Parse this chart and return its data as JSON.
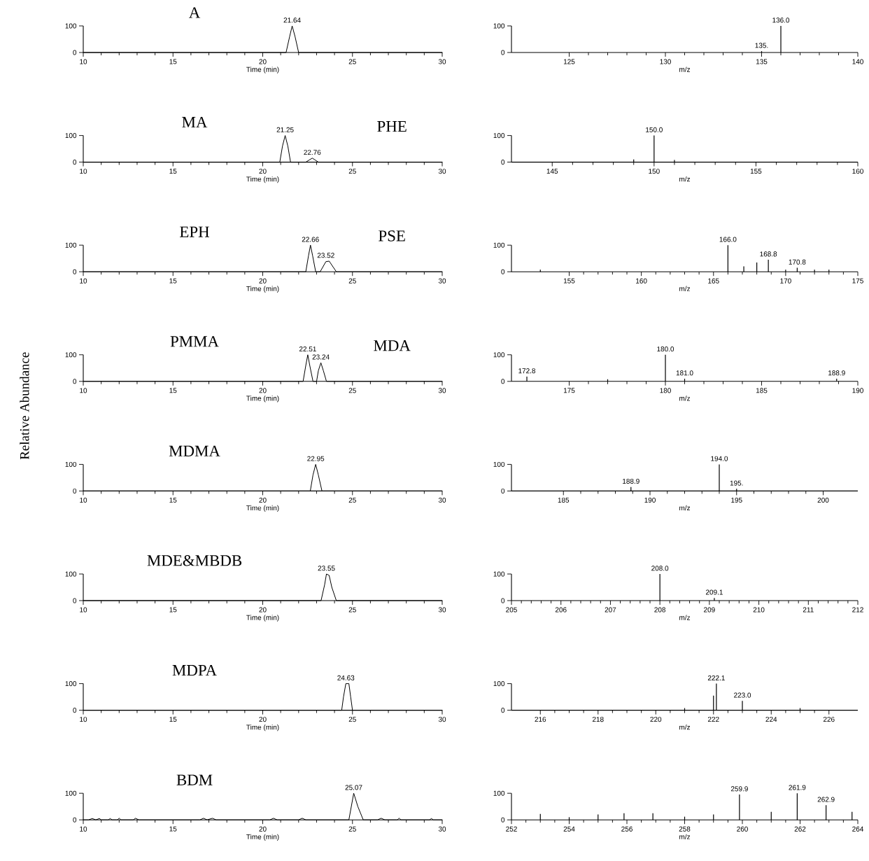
{
  "chart_data": [
    {
      "type": "line",
      "title": "A",
      "xlabel": "Time (min)",
      "x": [
        10,
        21.3,
        21.5,
        21.64,
        21.8,
        22.0,
        30
      ],
      "values": [
        0,
        0,
        60,
        100,
        60,
        0,
        0
      ],
      "color": "#000000",
      "xlim": [
        10,
        30
      ],
      "xticks": [
        10,
        15,
        20,
        25,
        30
      ],
      "ylim": [
        0,
        100
      ],
      "yticks": [
        0,
        100
      ],
      "annotations": [
        {
          "text": "21.64",
          "x": 21.64,
          "y": 100
        }
      ]
    },
    {
      "type": "bar",
      "xlabel": "m/z",
      "x": [
        135.0,
        136.0
      ],
      "values": [
        5,
        100
      ],
      "color": "#000000",
      "xlim": [
        122,
        140
      ],
      "xticks": [
        125,
        130,
        135,
        140
      ],
      "ylim": [
        0,
        100
      ],
      "yticks": [
        0,
        100
      ],
      "annotations": [
        {
          "text": "135.",
          "x": 135.0,
          "y": 5
        },
        {
          "text": "136.0",
          "x": 136.0,
          "y": 100
        }
      ]
    },
    {
      "type": "line",
      "title": "MA",
      "xlabel": "Time (min)",
      "x": [
        10,
        20.95,
        21.1,
        21.25,
        21.4,
        21.55,
        22.4,
        22.76,
        23.1,
        30
      ],
      "values": [
        0,
        0,
        60,
        100,
        60,
        0,
        0,
        15,
        0,
        0
      ],
      "color": "#000000",
      "xlim": [
        10,
        30
      ],
      "xticks": [
        10,
        15,
        20,
        25,
        30
      ],
      "ylim": [
        0,
        100
      ],
      "yticks": [
        0,
        100
      ],
      "annotations": [
        "PHE",
        {
          "text": "21.25",
          "x": 21.25,
          "y": 100
        },
        {
          "text": "22.76",
          "x": 22.76,
          "y": 15
        }
      ]
    },
    {
      "type": "bar",
      "xlabel": "m/z",
      "x": [
        149.0,
        150.0,
        151.0
      ],
      "values": [
        10,
        100,
        8
      ],
      "color": "#000000",
      "xlim": [
        143,
        160
      ],
      "xticks": [
        145,
        150,
        155,
        160
      ],
      "ylim": [
        0,
        100
      ],
      "yticks": [
        0,
        100
      ],
      "annotations": [
        {
          "text": "150.0",
          "x": 150.0,
          "y": 100
        }
      ]
    },
    {
      "type": "line",
      "title": "EPH",
      "xlabel": "Time (min)",
      "x": [
        10,
        22.4,
        22.55,
        22.66,
        22.78,
        22.95,
        23.2,
        23.52,
        23.7,
        24.1,
        30
      ],
      "values": [
        0,
        0,
        60,
        100,
        60,
        0,
        0,
        38,
        40,
        0,
        0
      ],
      "color": "#000000",
      "xlim": [
        10,
        30
      ],
      "xticks": [
        10,
        15,
        20,
        25,
        30
      ],
      "ylim": [
        0,
        100
      ],
      "yticks": [
        0,
        100
      ],
      "annotations": [
        "PSE",
        {
          "text": "22.66",
          "x": 22.66,
          "y": 100
        },
        {
          "text": "23.52",
          "x": 23.52,
          "y": 40
        }
      ]
    },
    {
      "type": "bar",
      "xlabel": "m/z",
      "x": [
        153.0,
        166.0,
        167.1,
        168.0,
        168.8,
        170.0,
        170.8,
        172.0,
        173.0
      ],
      "values": [
        8,
        100,
        20,
        35,
        45,
        8,
        15,
        8,
        8
      ],
      "color": "#000000",
      "xlim": [
        151,
        175
      ],
      "xticks": [
        155,
        160,
        165,
        170,
        175
      ],
      "ylim": [
        0,
        100
      ],
      "yticks": [
        0,
        100
      ],
      "annotations": [
        {
          "text": "166.0",
          "x": 166.0,
          "y": 100
        },
        {
          "text": "168.8",
          "x": 168.8,
          "y": 45
        },
        {
          "text": "170.8",
          "x": 170.8,
          "y": 15
        }
      ]
    },
    {
      "type": "line",
      "title": "PMMA",
      "xlabel": "Time (min)",
      "ylabel": "Relative Abundance",
      "x": [
        10,
        22.25,
        22.4,
        22.51,
        22.62,
        22.8,
        23.0,
        23.1,
        23.24,
        23.38,
        23.55,
        30
      ],
      "values": [
        0,
        0,
        60,
        100,
        60,
        0,
        0,
        40,
        70,
        40,
        0,
        0
      ],
      "color": "#000000",
      "xlim": [
        10,
        30
      ],
      "xticks": [
        10,
        15,
        20,
        25,
        30
      ],
      "ylim": [
        0,
        100
      ],
      "yticks": [
        0,
        100
      ],
      "annotations": [
        "MDA",
        {
          "text": "22.51",
          "x": 22.51,
          "y": 100
        },
        {
          "text": "23.24",
          "x": 23.24,
          "y": 70
        }
      ]
    },
    {
      "type": "bar",
      "xlabel": "m/z",
      "x": [
        172.8,
        177.0,
        180.0,
        181.0,
        188.9
      ],
      "values": [
        18,
        8,
        100,
        10,
        10
      ],
      "color": "#000000",
      "xlim": [
        172,
        190
      ],
      "xticks": [
        175,
        180,
        185,
        190
      ],
      "ylim": [
        0,
        100
      ],
      "yticks": [
        0,
        100
      ],
      "annotations": [
        {
          "text": "172.8",
          "x": 172.8,
          "y": 18
        },
        {
          "text": "180.0",
          "x": 180.0,
          "y": 100
        },
        {
          "text": "181.0",
          "x": 181.0,
          "y": 10
        },
        {
          "text": "188.9",
          "x": 188.9,
          "y": 10
        }
      ]
    },
    {
      "type": "line",
      "title": "MDMA",
      "xlabel": "Time (min)",
      "x": [
        10,
        22.65,
        22.8,
        22.95,
        23.1,
        23.3,
        30
      ],
      "values": [
        0,
        0,
        60,
        100,
        60,
        0,
        0
      ],
      "color": "#000000",
      "xlim": [
        10,
        30
      ],
      "xticks": [
        10,
        15,
        20,
        25,
        30
      ],
      "ylim": [
        0,
        100
      ],
      "yticks": [
        0,
        100
      ],
      "annotations": [
        {
          "text": "22.95",
          "x": 22.95,
          "y": 100
        }
      ]
    },
    {
      "type": "bar",
      "xlabel": "m/z",
      "x": [
        188.9,
        194.0,
        195.0
      ],
      "values": [
        15,
        100,
        8
      ],
      "color": "#000000",
      "xlim": [
        182,
        202
      ],
      "xticks": [
        185,
        190,
        195,
        200
      ],
      "ylim": [
        0,
        100
      ],
      "yticks": [
        0,
        100
      ],
      "annotations": [
        {
          "text": "188.9",
          "x": 188.9,
          "y": 15
        },
        {
          "text": "194.0",
          "x": 194.0,
          "y": 100
        },
        {
          "text": "195.",
          "x": 195.0,
          "y": 8
        }
      ]
    },
    {
      "type": "line",
      "title": "MDE&MBDB",
      "xlabel": "Time (min)",
      "x": [
        10,
        23.25,
        23.45,
        23.55,
        23.7,
        23.85,
        24.1,
        30
      ],
      "values": [
        0,
        0,
        60,
        100,
        95,
        50,
        0,
        0
      ],
      "color": "#000000",
      "xlim": [
        10,
        30
      ],
      "xticks": [
        10,
        15,
        20,
        25,
        30
      ],
      "ylim": [
        0,
        100
      ],
      "yticks": [
        0,
        100
      ],
      "annotations": [
        {
          "text": "23.55",
          "x": 23.55,
          "y": 100
        }
      ]
    },
    {
      "type": "bar",
      "xlabel": "m/z",
      "x": [
        208.0,
        209.1
      ],
      "values": [
        100,
        10
      ],
      "color": "#000000",
      "xlim": [
        205,
        212
      ],
      "xticks": [
        205,
        206,
        207,
        208,
        209,
        210,
        211,
        212
      ],
      "ylim": [
        0,
        100
      ],
      "yticks": [
        0,
        100
      ],
      "annotations": [
        {
          "text": "208.0",
          "x": 208.0,
          "y": 100
        },
        {
          "text": "209.1",
          "x": 209.1,
          "y": 10
        }
      ]
    },
    {
      "type": "line",
      "title": "MDPA",
      "xlabel": "Time (min)",
      "x": [
        10,
        24.4,
        24.5,
        24.63,
        24.8,
        24.9,
        25.0,
        30
      ],
      "values": [
        0,
        0,
        50,
        100,
        100,
        50,
        0,
        0
      ],
      "color": "#000000",
      "xlim": [
        10,
        30
      ],
      "xticks": [
        10,
        15,
        20,
        25,
        30
      ],
      "ylim": [
        0,
        100
      ],
      "yticks": [
        0,
        100
      ],
      "annotations": [
        {
          "text": "24.63",
          "x": 24.63,
          "y": 100
        }
      ]
    },
    {
      "type": "bar",
      "xlabel": "m/z",
      "x": [
        221.0,
        222.0,
        222.1,
        223.0,
        225.0
      ],
      "values": [
        8,
        55,
        100,
        35,
        8
      ],
      "color": "#000000",
      "xlim": [
        215,
        227
      ],
      "xticks": [
        216,
        218,
        220,
        222,
        224,
        226
      ],
      "ylim": [
        0,
        100
      ],
      "yticks": [
        0,
        100
      ],
      "annotations": [
        {
          "text": "222.1",
          "x": 222.1,
          "y": 100
        },
        {
          "text": "223.0",
          "x": 223.0,
          "y": 35
        }
      ]
    },
    {
      "type": "line",
      "title": "BDM",
      "xlabel": "Time (min)",
      "x": [
        10,
        10.3,
        10.5,
        10.7,
        10.9,
        11.0,
        11.1,
        11.4,
        11.5,
        11.6,
        11.9,
        12.0,
        12.1,
        12.8,
        12.9,
        13.1,
        16.5,
        16.7,
        16.9,
        17.2,
        17.4,
        20.4,
        20.6,
        20.8,
        22.0,
        22.2,
        22.4,
        22.6,
        24.8,
        25.07,
        25.3,
        25.6,
        26.4,
        26.6,
        26.8,
        27.5,
        27.6,
        27.7,
        29.3,
        29.4,
        29.5,
        30
      ],
      "values": [
        0,
        0,
        5,
        0,
        5,
        0,
        0,
        0,
        5,
        0,
        0,
        6,
        0,
        0,
        6,
        0,
        0,
        6,
        0,
        6,
        0,
        0,
        6,
        0,
        0,
        6,
        0,
        0,
        0,
        100,
        50,
        0,
        0,
        6,
        0,
        0,
        6,
        0,
        0,
        5,
        0,
        0
      ],
      "color": "#000000",
      "xlim": [
        10,
        30
      ],
      "xticks": [
        10,
        15,
        20,
        25,
        30
      ],
      "ylim": [
        0,
        100
      ],
      "yticks": [
        0,
        100
      ],
      "annotations": [
        {
          "text": "25.07",
          "x": 25.07,
          "y": 100
        }
      ]
    },
    {
      "type": "bar",
      "xlabel": "m/z",
      "x": [
        253.0,
        254.0,
        255.0,
        255.9,
        256.9,
        258.0,
        259.0,
        259.9,
        261.0,
        261.9,
        262.9,
        263.8
      ],
      "values": [
        22,
        10,
        20,
        25,
        25,
        12,
        20,
        95,
        30,
        100,
        55,
        30
      ],
      "color": "#000000",
      "xlim": [
        252,
        264
      ],
      "xticks": [
        252,
        254,
        256,
        258,
        260,
        262,
        264
      ],
      "ylim": [
        0,
        100
      ],
      "yticks": [
        0,
        100
      ],
      "annotations": [
        {
          "text": "259.9",
          "x": 259.9,
          "y": 95
        },
        {
          "text": "261.9",
          "x": 261.9,
          "y": 100
        },
        {
          "text": "262.9",
          "x": 262.9,
          "y": 55
        }
      ]
    }
  ]
}
